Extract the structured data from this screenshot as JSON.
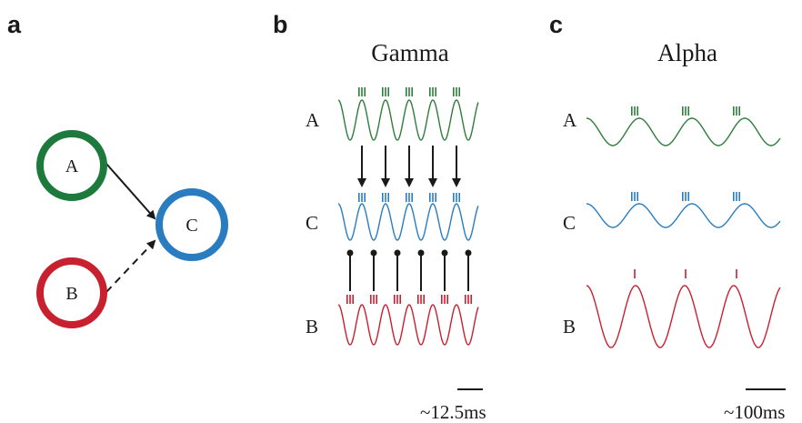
{
  "panel_a": {
    "label": "a",
    "nodes": [
      {
        "id": "A",
        "label": "A",
        "color": "#1e7a3c"
      },
      {
        "id": "B",
        "label": "B",
        "color": "#c8202f"
      },
      {
        "id": "C",
        "label": "C",
        "color": "#2a7cc1"
      }
    ],
    "edges": [
      {
        "from": "A",
        "to": "C",
        "style": "solid"
      },
      {
        "from": "B",
        "to": "C",
        "style": "dashed"
      }
    ]
  },
  "panel_b": {
    "label": "b",
    "title": "Gamma",
    "rows": [
      {
        "label": "A",
        "color": "#2e7d3c"
      },
      {
        "label": "C",
        "color": "#2a7cc1"
      },
      {
        "label": "B",
        "color": "#c8202f"
      }
    ],
    "scale_label": "~12.5ms"
  },
  "panel_c": {
    "label": "c",
    "title": "Alpha",
    "rows": [
      {
        "label": "A",
        "color": "#2e7d3c"
      },
      {
        "label": "C",
        "color": "#2a7cc1"
      },
      {
        "label": "B",
        "color": "#c8202f"
      }
    ],
    "scale_label": "~100ms"
  }
}
